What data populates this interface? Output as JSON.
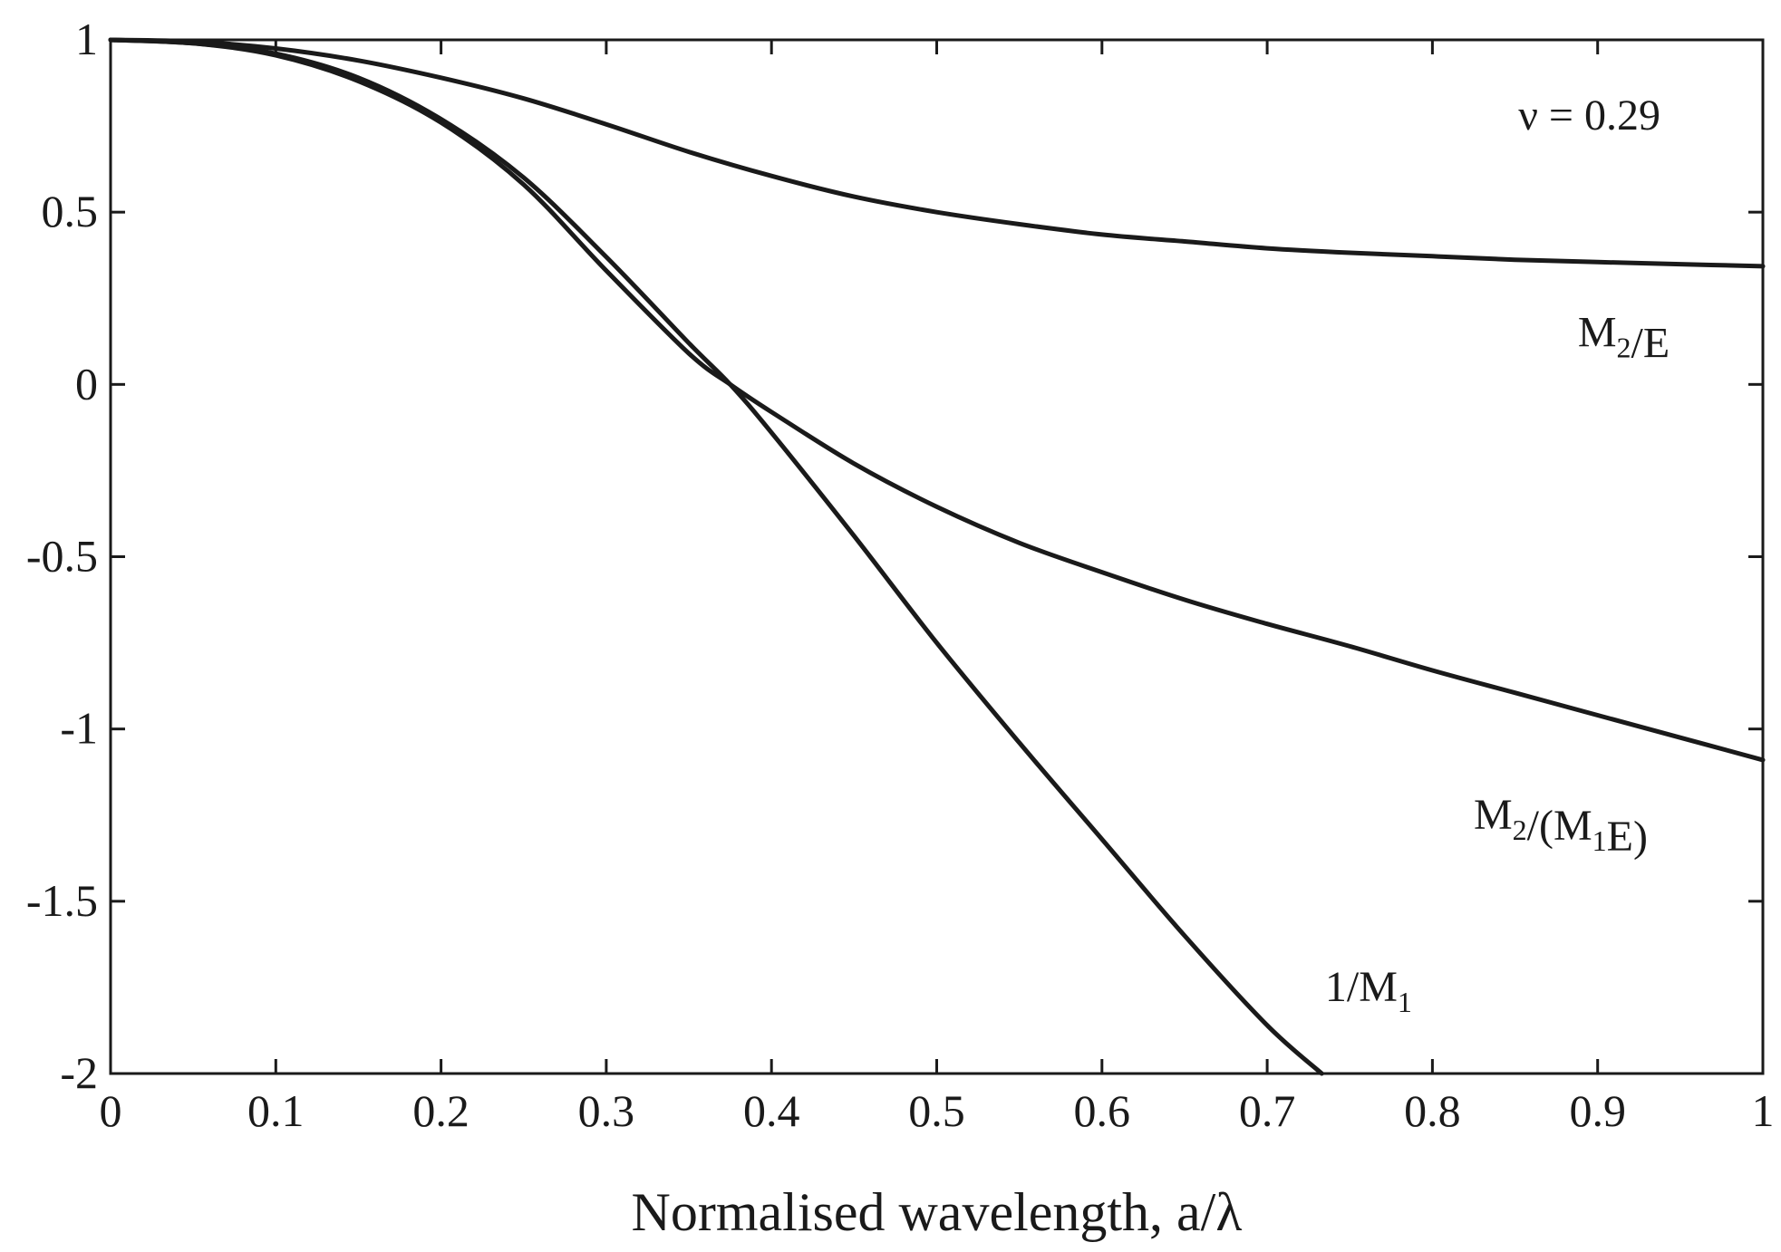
{
  "chart_data": {
    "type": "line",
    "title": "",
    "xlabel": "Normalised wavelength, a/λ",
    "ylabel": "",
    "xlim": [
      0,
      1
    ],
    "ylim": [
      -2,
      1
    ],
    "grid": false,
    "x_ticks": [
      0,
      0.1,
      0.2,
      0.3,
      0.4,
      0.5,
      0.6,
      0.7,
      0.8,
      0.9,
      1
    ],
    "x_tick_labels": [
      "0",
      "0.1",
      "0.2",
      "0.3",
      "0.4",
      "0.5",
      "0.6",
      "0.7",
      "0.8",
      "0.9",
      "1"
    ],
    "y_ticks": [
      1,
      0.5,
      0,
      -0.5,
      -1,
      -1.5,
      -2
    ],
    "y_tick_labels": [
      "1",
      "0.5",
      "0",
      "-0.5",
      "-1",
      "-1.5",
      "-2"
    ],
    "parameter_note": "ν = 0.29",
    "series": [
      {
        "name": "M2/E",
        "label_main": "M",
        "label_sub": "2",
        "label_rest": "/E",
        "x": [
          0,
          0.05,
          0.1,
          0.15,
          0.2,
          0.25,
          0.3,
          0.35,
          0.4,
          0.45,
          0.5,
          0.55,
          0.6,
          0.65,
          0.7,
          0.75,
          0.8,
          0.85,
          0.9,
          0.95,
          1.0
        ],
        "values": [
          1.0,
          0.995,
          0.975,
          0.94,
          0.89,
          0.83,
          0.755,
          0.675,
          0.605,
          0.545,
          0.5,
          0.465,
          0.435,
          0.415,
          0.395,
          0.382,
          0.372,
          0.362,
          0.355,
          0.349,
          0.343
        ]
      },
      {
        "name": "M2/(M1E)",
        "label_main": "M",
        "label_sub": "2",
        "label_rest": "/(M",
        "label_sub2": "1",
        "label_rest2": "E)",
        "x": [
          0,
          0.05,
          0.1,
          0.15,
          0.2,
          0.25,
          0.3,
          0.35,
          0.375,
          0.4,
          0.45,
          0.5,
          0.55,
          0.6,
          0.65,
          0.7,
          0.75,
          0.8,
          0.85,
          0.9,
          0.95,
          1.0
        ],
        "values": [
          1.0,
          0.99,
          0.955,
          0.88,
          0.76,
          0.58,
          0.33,
          0.09,
          0.0,
          -0.08,
          -0.23,
          -0.355,
          -0.46,
          -0.545,
          -0.625,
          -0.695,
          -0.76,
          -0.83,
          -0.895,
          -0.96,
          -1.025,
          -1.09
        ]
      },
      {
        "name": "1/M1",
        "label_main": "1/M",
        "label_sub": "1",
        "label_rest": "",
        "x": [
          0,
          0.05,
          0.1,
          0.15,
          0.2,
          0.25,
          0.3,
          0.35,
          0.375,
          0.4,
          0.45,
          0.5,
          0.55,
          0.6,
          0.65,
          0.7,
          0.733
        ],
        "values": [
          1.0,
          0.99,
          0.96,
          0.89,
          0.77,
          0.6,
          0.37,
          0.12,
          0.0,
          -0.14,
          -0.44,
          -0.75,
          -1.04,
          -1.32,
          -1.6,
          -1.86,
          -2.0
        ]
      }
    ]
  }
}
